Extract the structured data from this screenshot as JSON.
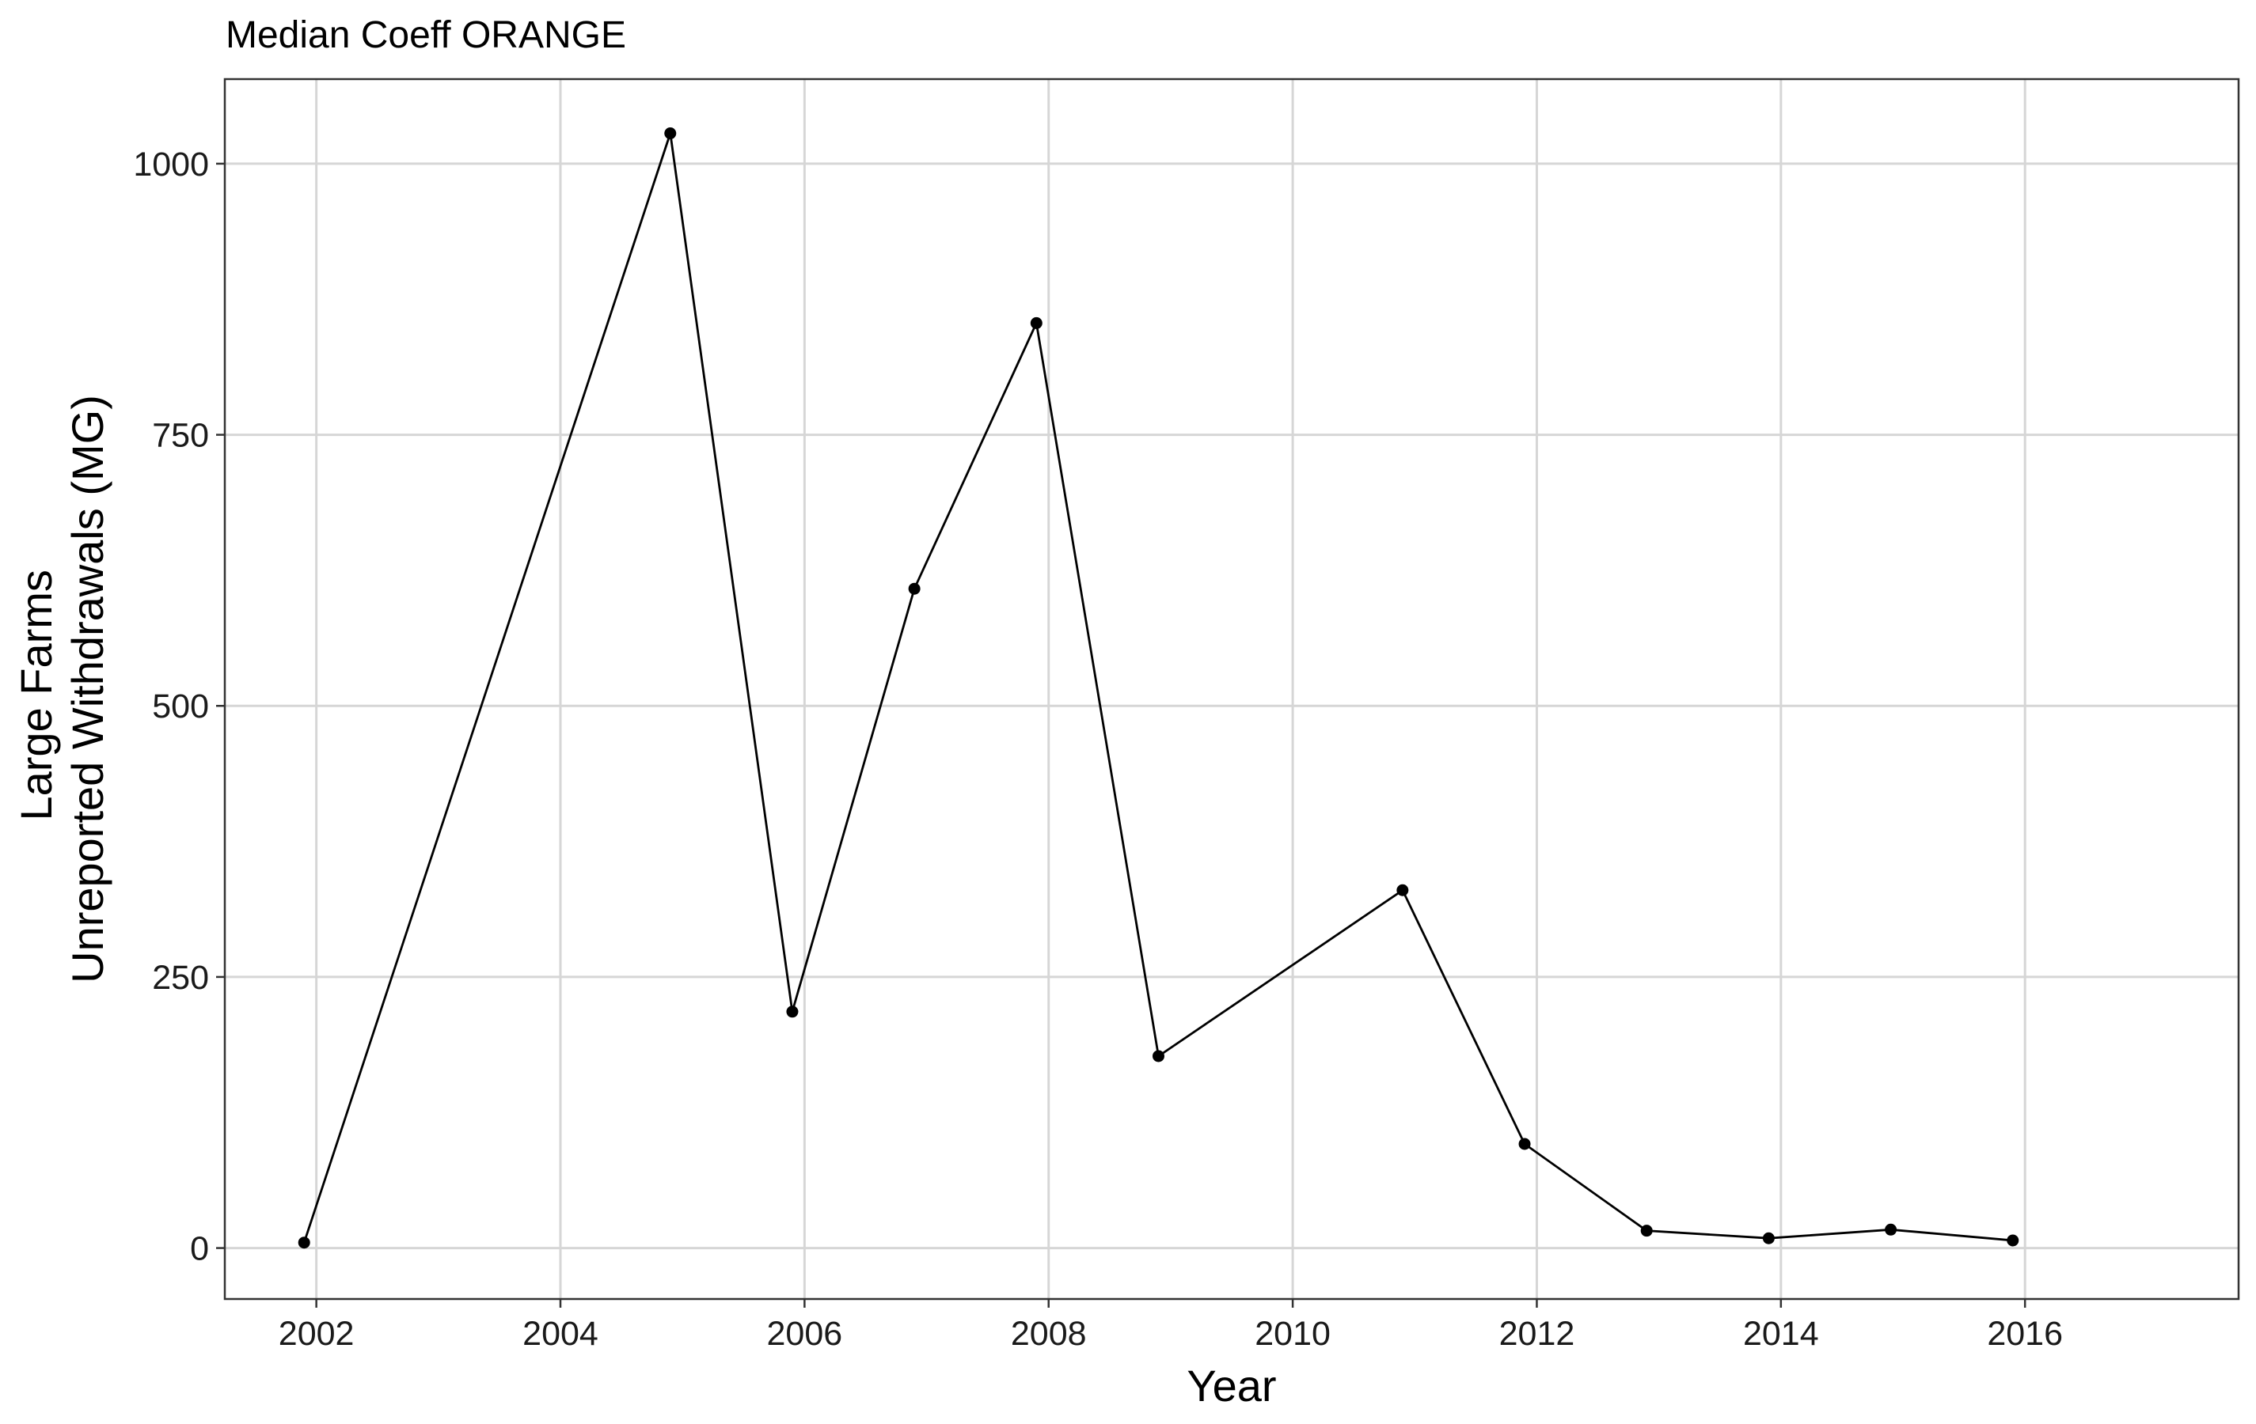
{
  "chart_data": {
    "type": "line",
    "title": "Median Coeff ORANGE",
    "xlabel": "Year",
    "ylabel_lines": [
      "Large Farms",
      "Unreported Withdrawals (MG)"
    ],
    "xlim": [
      2001.25,
      2017.75
    ],
    "ylim": [
      -47,
      1078
    ],
    "x_ticks": [
      2002,
      2004,
      2006,
      2008,
      2010,
      2012,
      2014,
      2016
    ],
    "x_tick_labels": [
      "2002",
      "2004",
      "2006",
      "2008",
      "2010",
      "2012",
      "2014",
      "2016"
    ],
    "y_ticks": [
      0,
      250,
      500,
      750,
      1000
    ],
    "y_tick_labels": [
      "0",
      "250",
      "500",
      "750",
      "1000"
    ],
    "grid": true,
    "legend": "none",
    "line_color": "#000000",
    "series": [
      {
        "x": [
          2001.9,
          2004.9,
          2005.9,
          2006.9,
          2007.9,
          2008.9,
          2010.9,
          2011.9,
          2012.9,
          2013.9,
          2014.9,
          2015.9
        ],
        "y": [
          5,
          1028,
          218,
          608,
          853,
          177,
          330,
          96,
          16,
          9,
          17,
          7
        ]
      }
    ]
  }
}
